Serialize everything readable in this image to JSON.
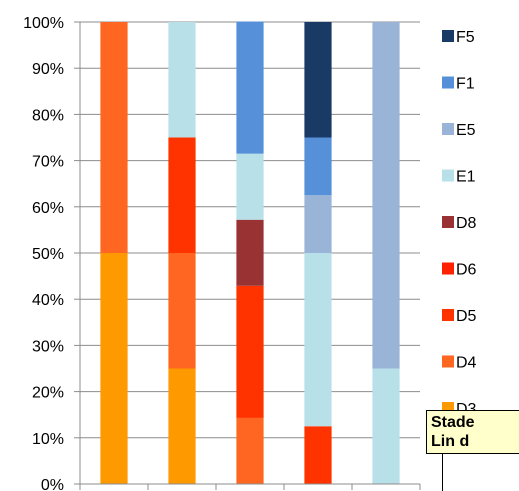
{
  "chart_data": {
    "type": "bar",
    "stacked": true,
    "categories": [
      "",
      "",
      "",
      "",
      ""
    ],
    "ylim": [
      0,
      100
    ],
    "y_ticks": [
      "0%",
      "10%",
      "20%",
      "30%",
      "40%",
      "50%",
      "60%",
      "70%",
      "80%",
      "90%",
      "100%"
    ],
    "grid": true,
    "legend_position": "right",
    "series": [
      {
        "name": "D3",
        "color": "#FF9900",
        "values": [
          50,
          25,
          0,
          0,
          0
        ]
      },
      {
        "name": "D4",
        "color": "#FF6622",
        "values": [
          50,
          25,
          14.3,
          0,
          0
        ]
      },
      {
        "name": "D5",
        "color": "#FF3300",
        "values": [
          0,
          25,
          28.6,
          12.5,
          0
        ]
      },
      {
        "name": "D6",
        "color": "#FF2200",
        "values": [
          0,
          0,
          0,
          0,
          0
        ]
      },
      {
        "name": "D8",
        "color": "#993333",
        "values": [
          0,
          0,
          14.3,
          0,
          0
        ]
      },
      {
        "name": "E1",
        "color": "#B8E0E8",
        "values": [
          0,
          25,
          14.3,
          37.5,
          25
        ]
      },
      {
        "name": "E5",
        "color": "#9AB4D8",
        "values": [
          0,
          0,
          0,
          12.5,
          75
        ]
      },
      {
        "name": "F1",
        "color": "#5590D8",
        "values": [
          0,
          0,
          28.6,
          12.5,
          0
        ]
      },
      {
        "name": "F5",
        "color": "#1A3A66",
        "values": [
          0,
          0,
          0,
          25,
          0
        ]
      }
    ],
    "legend_order": [
      "F5",
      "F1",
      "E5",
      "E1",
      "D8",
      "D6",
      "D5",
      "D4",
      "D3"
    ]
  },
  "note": {
    "line1": "Stade",
    "line2": "Lin d"
  }
}
